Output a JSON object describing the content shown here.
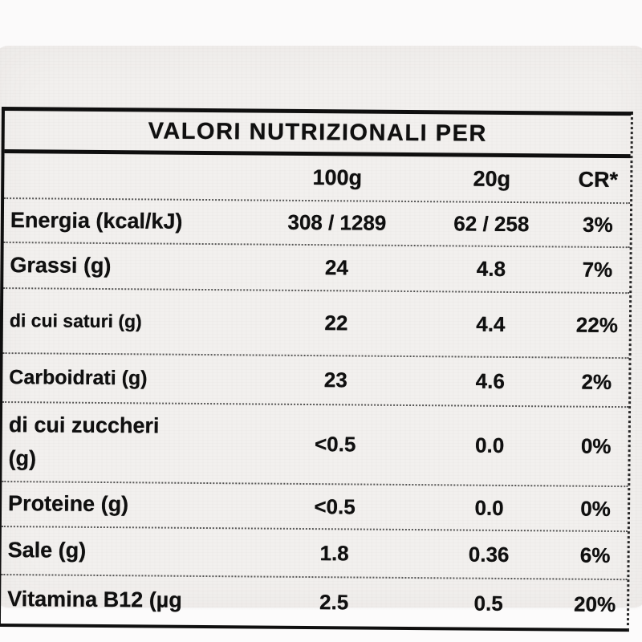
{
  "page": {
    "background_color": "#fbfafa",
    "sticker_color": "#f2f0ee",
    "text_color": "#151515"
  },
  "label": {
    "title": "VALORI NUTRIZIONALI PER",
    "columns": {
      "col1": "100g",
      "col2": "20g",
      "col3": "CR*"
    },
    "rows": [
      {
        "name": "Energia (kcal/kJ)",
        "per_100g": "308 / 1289",
        "per_20g": "62 / 258",
        "cr": "3%"
      },
      {
        "name": "Grassi (g)",
        "per_100g": "24",
        "per_20g": "4.8",
        "cr": "7%"
      },
      {
        "name": "di cui saturi (g)",
        "per_100g": "22",
        "per_20g": "4.4",
        "cr": "22%"
      },
      {
        "name": "Carboidrati (g)",
        "per_100g": "23",
        "per_20g": "4.6",
        "cr": "2%"
      },
      {
        "name": "di cui zuccheri\n(g)",
        "per_100g": "<0.5",
        "per_20g": "0.0",
        "cr": "0%"
      },
      {
        "name": "Proteine (g)",
        "per_100g": "<0.5",
        "per_20g": "0.0",
        "cr": "0%"
      },
      {
        "name": "Sale (g)",
        "per_100g": "1.8",
        "per_20g": "0.36",
        "cr": "6%"
      },
      {
        "name": "Vitamina B12 (µg",
        "per_100g": "2.5",
        "per_20g": "0.5",
        "cr": "20%"
      }
    ]
  }
}
